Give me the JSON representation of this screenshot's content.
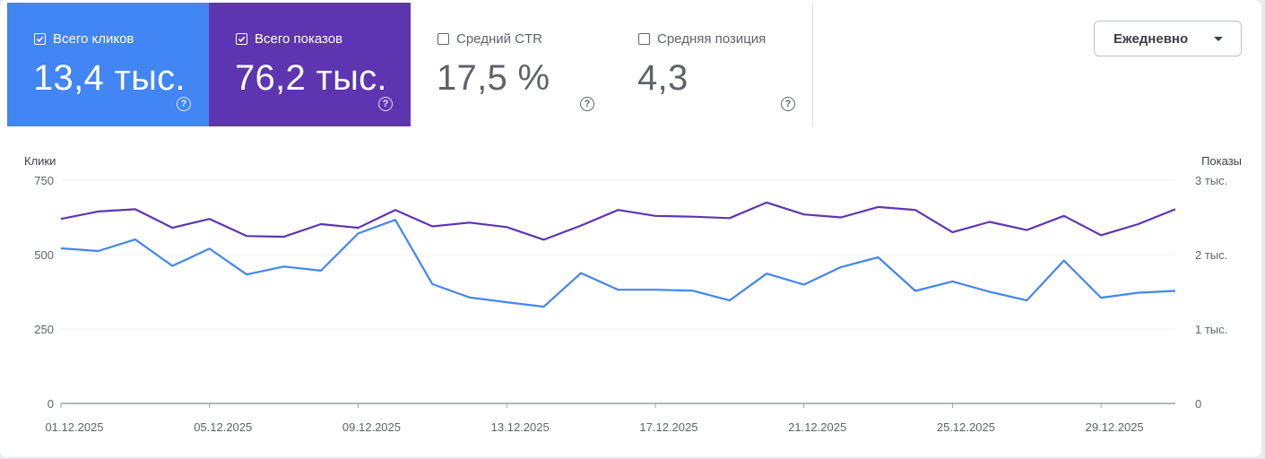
{
  "metrics": {
    "clicks": {
      "label": "Всего кликов",
      "value": "13,4 тыс.",
      "checked": true,
      "color": "#4285f4"
    },
    "impressions": {
      "label": "Всего показов",
      "value": "76,2 тыс.",
      "checked": true,
      "color": "#5e35b1"
    },
    "ctr": {
      "label": "Средний CTR",
      "value": "17,5 %",
      "checked": false
    },
    "position": {
      "label": "Средняя позиция",
      "value": "4,3",
      "checked": false
    },
    "help_glyph": "?"
  },
  "period_selector": {
    "value": "Ежедневно"
  },
  "chart_data": {
    "type": "line",
    "x": [
      "01.12.2025",
      "02.12.2025",
      "03.12.2025",
      "04.12.2025",
      "05.12.2025",
      "06.12.2025",
      "07.12.2025",
      "08.12.2025",
      "09.12.2025",
      "10.12.2025",
      "11.12.2025",
      "12.12.2025",
      "13.12.2025",
      "14.12.2025",
      "15.12.2025",
      "16.12.2025",
      "17.12.2025",
      "18.12.2025",
      "19.12.2025",
      "20.12.2025",
      "21.12.2025",
      "22.12.2025",
      "23.12.2025",
      "24.12.2025",
      "25.12.2025",
      "26.12.2025",
      "27.12.2025",
      "28.12.2025",
      "29.12.2025",
      "30.12.2025",
      "31.12.2025"
    ],
    "x_tick_labels": [
      "01.12.2025",
      "05.12.2025",
      "09.12.2025",
      "13.12.2025",
      "17.12.2025",
      "21.12.2025",
      "25.12.2025",
      "29.12.2025"
    ],
    "x_tick_indices": [
      0,
      4,
      8,
      12,
      16,
      20,
      24,
      28
    ],
    "left_axis": {
      "label": "Клики",
      "range": [
        0,
        750
      ],
      "ticks": [
        0,
        250,
        500,
        750
      ],
      "tick_labels": [
        "0",
        "250",
        "500",
        "750"
      ]
    },
    "right_axis": {
      "label": "Показы",
      "range": [
        0,
        3000
      ],
      "ticks": [
        0,
        1000,
        2000,
        3000
      ],
      "tick_labels": [
        "0",
        "1 тыс.",
        "2 тыс.",
        "3 тыс."
      ]
    },
    "grid": true,
    "series": [
      {
        "axis": "left",
        "color": "#4285f4",
        "values": [
          521,
          512,
          551,
          462,
          520,
          433,
          460,
          446,
          571,
          617,
          401,
          356,
          340,
          325,
          438,
          382,
          382,
          379,
          346,
          436,
          399,
          458,
          491,
          378,
          410,
          375,
          346,
          480,
          355,
          372,
          378
        ]
      },
      {
        "axis": "right",
        "color": "#5e35b1",
        "values": [
          2480,
          2580,
          2610,
          2360,
          2480,
          2250,
          2240,
          2410,
          2360,
          2600,
          2380,
          2430,
          2370,
          2200,
          2390,
          2600,
          2520,
          2510,
          2490,
          2700,
          2540,
          2500,
          2640,
          2600,
          2300,
          2440,
          2330,
          2520,
          2260,
          2410,
          2610
        ]
      }
    ]
  }
}
